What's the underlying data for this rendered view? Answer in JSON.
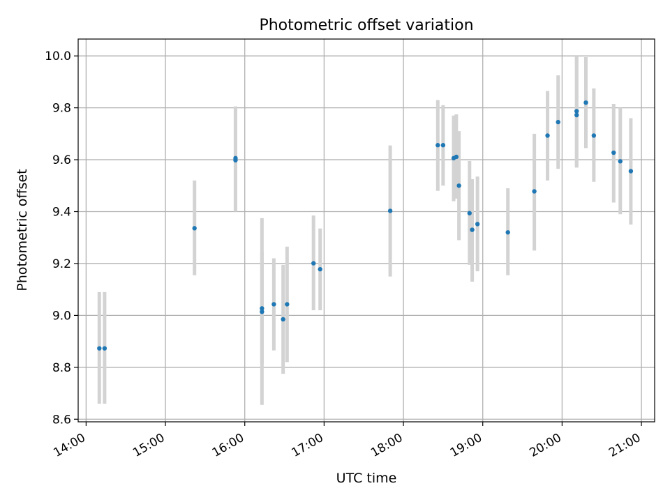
{
  "chart_data": {
    "type": "scatter",
    "title": "Photometric offset variation",
    "xlabel": "UTC time",
    "ylabel": "Photometric offset",
    "xlim": [
      "13:54",
      "21:10"
    ],
    "ylim": [
      8.59,
      10.065
    ],
    "grid": true,
    "xticks": [
      "14:00",
      "15:00",
      "16:00",
      "17:00",
      "18:00",
      "19:00",
      "20:00",
      "21:00"
    ],
    "yticks": [
      "8.6",
      "8.8",
      "9.0",
      "9.2",
      "9.4",
      "9.6",
      "9.8",
      "10.0"
    ],
    "series": [
      {
        "points": [
          {
            "x": "14:10",
            "y": 8.873,
            "err_low": 8.66,
            "err_high": 9.09
          },
          {
            "x": "14:14",
            "y": 8.873,
            "err_low": 8.66,
            "err_high": 9.09
          },
          {
            "x": "15:22",
            "y": 9.336,
            "err_low": 9.155,
            "err_high": 9.52
          },
          {
            "x": "15:53",
            "y": 9.598,
            "err_low": 9.4,
            "err_high": 9.805
          },
          {
            "x": "15:53",
            "y": 9.606,
            "err_low": 9.4,
            "err_high": 9.805
          },
          {
            "x": "16:13",
            "y": 9.027,
            "err_low": 8.815,
            "err_high": 9.245
          },
          {
            "x": "16:13",
            "y": 9.014,
            "err_low": 8.655,
            "err_high": 9.375
          },
          {
            "x": "16:22",
            "y": 9.043,
            "err_low": 8.865,
            "err_high": 9.22
          },
          {
            "x": "16:29",
            "y": 8.985,
            "err_low": 8.775,
            "err_high": 9.195
          },
          {
            "x": "16:32",
            "y": 9.043,
            "err_low": 8.82,
            "err_high": 9.265
          },
          {
            "x": "16:52",
            "y": 9.201,
            "err_low": 9.02,
            "err_high": 9.385
          },
          {
            "x": "16:57",
            "y": 9.178,
            "err_low": 9.02,
            "err_high": 9.335
          },
          {
            "x": "17:50",
            "y": 9.403,
            "err_low": 9.15,
            "err_high": 9.655
          },
          {
            "x": "18:26",
            "y": 9.656,
            "err_low": 9.48,
            "err_high": 9.83
          },
          {
            "x": "18:30",
            "y": 9.656,
            "err_low": 9.5,
            "err_high": 9.81
          },
          {
            "x": "18:38",
            "y": 9.606,
            "err_low": 9.44,
            "err_high": 9.77
          },
          {
            "x": "18:40",
            "y": 9.611,
            "err_low": 9.45,
            "err_high": 9.775
          },
          {
            "x": "18:42",
            "y": 9.5,
            "err_low": 9.29,
            "err_high": 9.71
          },
          {
            "x": "18:50",
            "y": 9.394,
            "err_low": 9.195,
            "err_high": 9.595
          },
          {
            "x": "18:52",
            "y": 9.33,
            "err_low": 9.13,
            "err_high": 9.525
          },
          {
            "x": "18:56",
            "y": 9.352,
            "err_low": 9.17,
            "err_high": 9.535
          },
          {
            "x": "19:19",
            "y": 9.32,
            "err_low": 9.155,
            "err_high": 9.49
          },
          {
            "x": "19:39",
            "y": 9.478,
            "err_low": 9.25,
            "err_high": 9.7
          },
          {
            "x": "19:49",
            "y": 9.693,
            "err_low": 9.52,
            "err_high": 9.865
          },
          {
            "x": "19:57",
            "y": 9.745,
            "err_low": 9.565,
            "err_high": 9.925
          },
          {
            "x": "20:11",
            "y": 9.787,
            "err_low": 9.57,
            "err_high": 10.0
          },
          {
            "x": "20:11",
            "y": 9.772,
            "err_low": 9.57,
            "err_high": 10.0
          },
          {
            "x": "20:18",
            "y": 9.82,
            "err_low": 9.645,
            "err_high": 9.995
          },
          {
            "x": "20:24",
            "y": 9.693,
            "err_low": 9.515,
            "err_high": 9.875
          },
          {
            "x": "20:39",
            "y": 9.627,
            "err_low": 9.435,
            "err_high": 9.815
          },
          {
            "x": "20:44",
            "y": 9.594,
            "err_low": 9.39,
            "err_high": 9.8
          },
          {
            "x": "20:52",
            "y": 9.556,
            "err_low": 9.35,
            "err_high": 9.76
          }
        ]
      }
    ],
    "colors": {
      "marker": "#1f77b4",
      "errorbar": "#d3d3d3",
      "grid": "#b0b0b0",
      "axes": "#000000"
    }
  }
}
